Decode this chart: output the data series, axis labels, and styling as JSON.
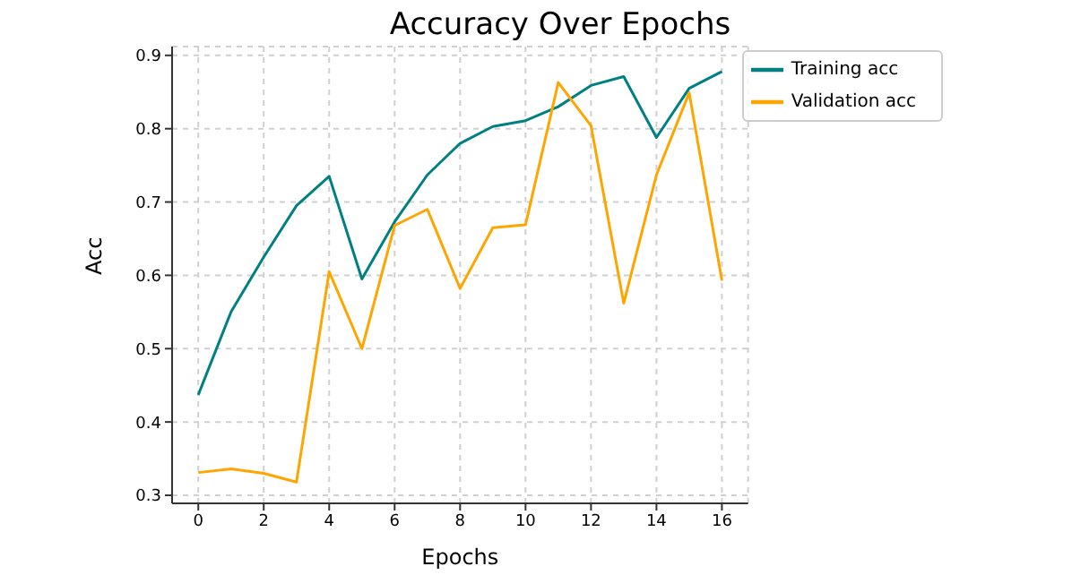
{
  "chart_data": {
    "type": "line",
    "title": "Accuracy Over Epochs",
    "xlabel": "Epochs",
    "ylabel": "Acc",
    "x": [
      0,
      1,
      2,
      3,
      4,
      5,
      6,
      7,
      8,
      9,
      10,
      11,
      12,
      13,
      14,
      15,
      16
    ],
    "series": [
      {
        "name": "Training acc",
        "color": "#008080",
        "values": [
          0.437,
          0.55,
          0.625,
          0.695,
          0.735,
          0.595,
          0.673,
          0.737,
          0.78,
          0.803,
          0.811,
          0.83,
          0.859,
          0.871,
          0.788,
          0.855,
          0.878
        ]
      },
      {
        "name": "Validation acc",
        "color": "#ffa500",
        "values": [
          0.331,
          0.336,
          0.33,
          0.318,
          0.605,
          0.5,
          0.668,
          0.69,
          0.582,
          0.665,
          0.669,
          0.863,
          0.804,
          0.562,
          0.737,
          0.849,
          0.593
        ]
      }
    ],
    "xlim": [
      -0.8,
      16.8
    ],
    "xticks": [
      0,
      2,
      4,
      6,
      8,
      10,
      12,
      14,
      16
    ],
    "ylim": [
      0.289,
      0.912
    ],
    "yticks": [
      0.3,
      0.4,
      0.5,
      0.6,
      0.7,
      0.8,
      0.9
    ],
    "grid": true,
    "legend": "top right",
    "marker": "none",
    "line_style": "solid"
  }
}
